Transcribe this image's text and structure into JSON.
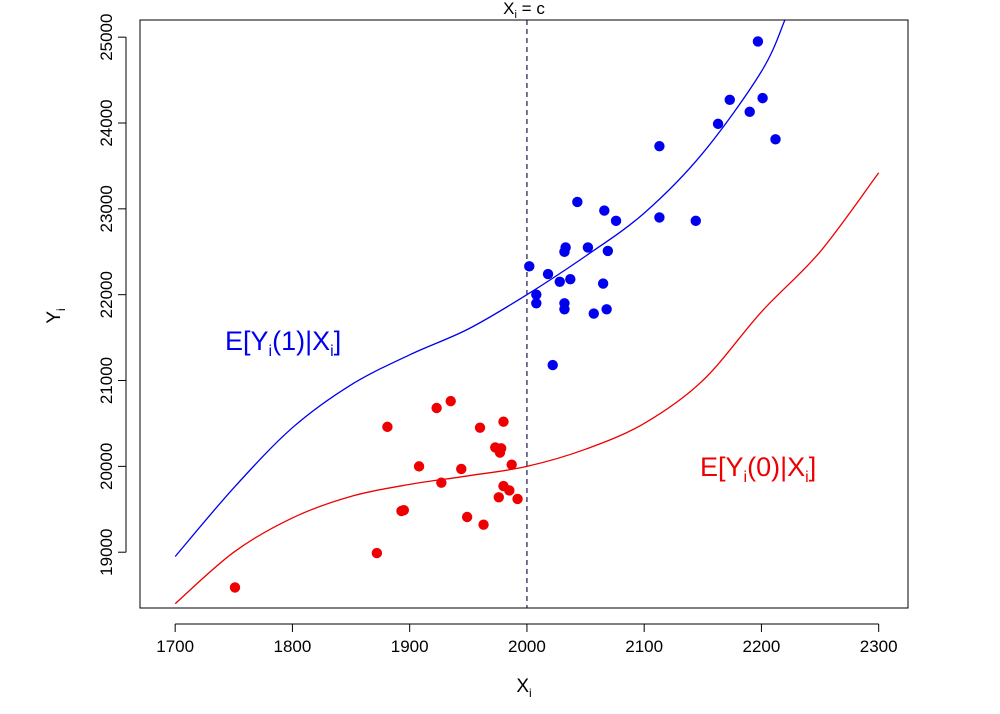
{
  "chart_data": {
    "type": "scatter",
    "xlabel": {
      "main": "X",
      "sub": "i"
    },
    "ylabel": {
      "main": "Y",
      "sub": "i"
    },
    "top_label": {
      "x": "X",
      "sub": "i",
      "rest": " = c"
    },
    "xlim": [
      1670,
      2325
    ],
    "ylim": [
      18350,
      25200
    ],
    "x_ticks": [
      1700,
      1800,
      1900,
      2000,
      2100,
      2200,
      2300
    ],
    "y_ticks": [
      19000,
      20000,
      21000,
      22000,
      23000,
      24000,
      25000
    ],
    "cutoff": 2000,
    "grid": false,
    "colors": {
      "treated": "#0000ee",
      "control": "#ee0000",
      "cutoff": "#1a1a4d"
    },
    "series": [
      {
        "key": "treated",
        "label_parts": {
          "a": "E[Y",
          "b": "i",
          "c": "(1)|X",
          "d": "i",
          "e": "]"
        },
        "curve": [
          [
            1700,
            18950
          ],
          [
            1750,
            19750
          ],
          [
            1800,
            20450
          ],
          [
            1850,
            20950
          ],
          [
            1900,
            21300
          ],
          [
            1950,
            21600
          ],
          [
            2000,
            22000
          ],
          [
            2050,
            22450
          ],
          [
            2100,
            22950
          ],
          [
            2150,
            23650
          ],
          [
            2200,
            24600
          ],
          [
            2220,
            25200
          ]
        ],
        "points": [
          [
            2002,
            22330
          ],
          [
            2008,
            22000
          ],
          [
            2008,
            21900
          ],
          [
            2018,
            22240
          ],
          [
            2022,
            21180
          ],
          [
            2028,
            22150
          ],
          [
            2032,
            22500
          ],
          [
            2033,
            22550
          ],
          [
            2032,
            21900
          ],
          [
            2032,
            21830
          ],
          [
            2037,
            22180
          ],
          [
            2043,
            23080
          ],
          [
            2052,
            22550
          ],
          [
            2057,
            21780
          ],
          [
            2065,
            22130
          ],
          [
            2066,
            22980
          ],
          [
            2068,
            21830
          ],
          [
            2069,
            22510
          ],
          [
            2076,
            22860
          ],
          [
            2113,
            22900
          ],
          [
            2113,
            23730
          ],
          [
            2144,
            22860
          ],
          [
            2163,
            23990
          ],
          [
            2173,
            24270
          ],
          [
            2190,
            24130
          ],
          [
            2197,
            24950
          ],
          [
            2201,
            24290
          ],
          [
            2212,
            23810
          ]
        ]
      },
      {
        "key": "control",
        "label_parts": {
          "a": "E[Y",
          "b": "i",
          "c": "(0)|X",
          "d": "i",
          "e": "]"
        },
        "curve": [
          [
            1700,
            18400
          ],
          [
            1750,
            19000
          ],
          [
            1800,
            19400
          ],
          [
            1850,
            19650
          ],
          [
            1900,
            19790
          ],
          [
            1950,
            19890
          ],
          [
            2000,
            20000
          ],
          [
            2050,
            20200
          ],
          [
            2100,
            20500
          ],
          [
            2150,
            21000
          ],
          [
            2200,
            21800
          ],
          [
            2250,
            22500
          ],
          [
            2300,
            23420
          ]
        ],
        "points": [
          [
            1751,
            18590
          ],
          [
            1872,
            18990
          ],
          [
            1881,
            20460
          ],
          [
            1893,
            19480
          ],
          [
            1895,
            19490
          ],
          [
            1908,
            20000
          ],
          [
            1923,
            20680
          ],
          [
            1927,
            19810
          ],
          [
            1935,
            20760
          ],
          [
            1944,
            19970
          ],
          [
            1949,
            19410
          ],
          [
            1960,
            20450
          ],
          [
            1963,
            19320
          ],
          [
            1973,
            20220
          ],
          [
            1976,
            19640
          ],
          [
            1977,
            20160
          ],
          [
            1978,
            20210
          ],
          [
            1980,
            20520
          ],
          [
            1980,
            19770
          ],
          [
            1985,
            19720
          ],
          [
            1987,
            20020
          ],
          [
            1992,
            19620
          ]
        ]
      }
    ]
  }
}
